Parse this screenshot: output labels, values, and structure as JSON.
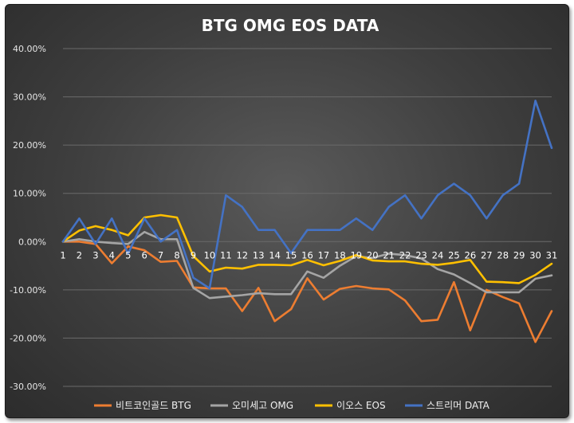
{
  "chart_data": {
    "type": "line",
    "title": "BTG  OMG  EOS  DATA",
    "x": [
      1,
      2,
      3,
      4,
      5,
      6,
      7,
      8,
      9,
      10,
      11,
      12,
      13,
      14,
      15,
      16,
      17,
      18,
      19,
      20,
      21,
      22,
      23,
      24,
      25,
      26,
      27,
      28,
      29,
      30,
      31
    ],
    "y_ticks": [
      "40.00%",
      "30.00%",
      "20.00%",
      "10.00%",
      "0.00%",
      "-10.00%",
      "-20.00%",
      "-30.00%"
    ],
    "ylim": [
      -30,
      40
    ],
    "grid": true,
    "legend_position": "bottom",
    "series": [
      {
        "name": "비트코인골드 BTG",
        "color": "#ed7d31",
        "values": [
          0,
          0,
          -0.5,
          -4.5,
          -1,
          -1.8,
          -4.2,
          -4,
          -9.5,
          -9.7,
          -9.7,
          -14.4,
          -9.6,
          -16.5,
          -14,
          -7.6,
          -12,
          -9.8,
          -9.2,
          -9.7,
          -9.9,
          -12.2,
          -16.5,
          -16.2,
          -8.4,
          -18.4,
          -10,
          -11.5,
          -12.8,
          -20.8,
          -14.4
        ]
      },
      {
        "name": "오미세고 OMG",
        "color": "#a5a5a5",
        "values": [
          0,
          0.5,
          0,
          -0.3,
          -0.5,
          2,
          0.5,
          0.5,
          -9.6,
          -11.7,
          -11.4,
          -11.1,
          -10.7,
          -10.9,
          -10.9,
          -6.2,
          -7.5,
          -5,
          -3,
          -3.4,
          -2.5,
          -2.8,
          -3.5,
          -5.7,
          -6.8,
          -8.6,
          -10.5,
          -10.5,
          -10.5,
          -7.7,
          -7
        ]
      },
      {
        "name": "이오스 EOS",
        "color": "#ffc000",
        "values": [
          0,
          2.3,
          3.2,
          2.4,
          1.3,
          5,
          5.5,
          5,
          -3,
          -6.2,
          -5.4,
          -5.6,
          -4.8,
          -4.8,
          -4.9,
          -3.8,
          -4.9,
          -4,
          -2.8,
          -3.9,
          -4.1,
          -4.1,
          -4.6,
          -4.8,
          -4.4,
          -3.8,
          -8.3,
          -8.4,
          -8.6,
          -6.9,
          -4.6
        ]
      },
      {
        "name": "스트리머 DATA",
        "color": "#4472c4",
        "values": [
          0,
          4.8,
          -0.5,
          4.8,
          -2.5,
          4.8,
          0,
          2.4,
          -7.5,
          -9.7,
          9.6,
          7.2,
          2.4,
          2.4,
          -2.4,
          2.4,
          2.4,
          2.4,
          4.8,
          2.4,
          7.2,
          9.6,
          4.8,
          9.6,
          12,
          9.6,
          4.8,
          9.6,
          12,
          29.2,
          19.4
        ]
      }
    ]
  }
}
